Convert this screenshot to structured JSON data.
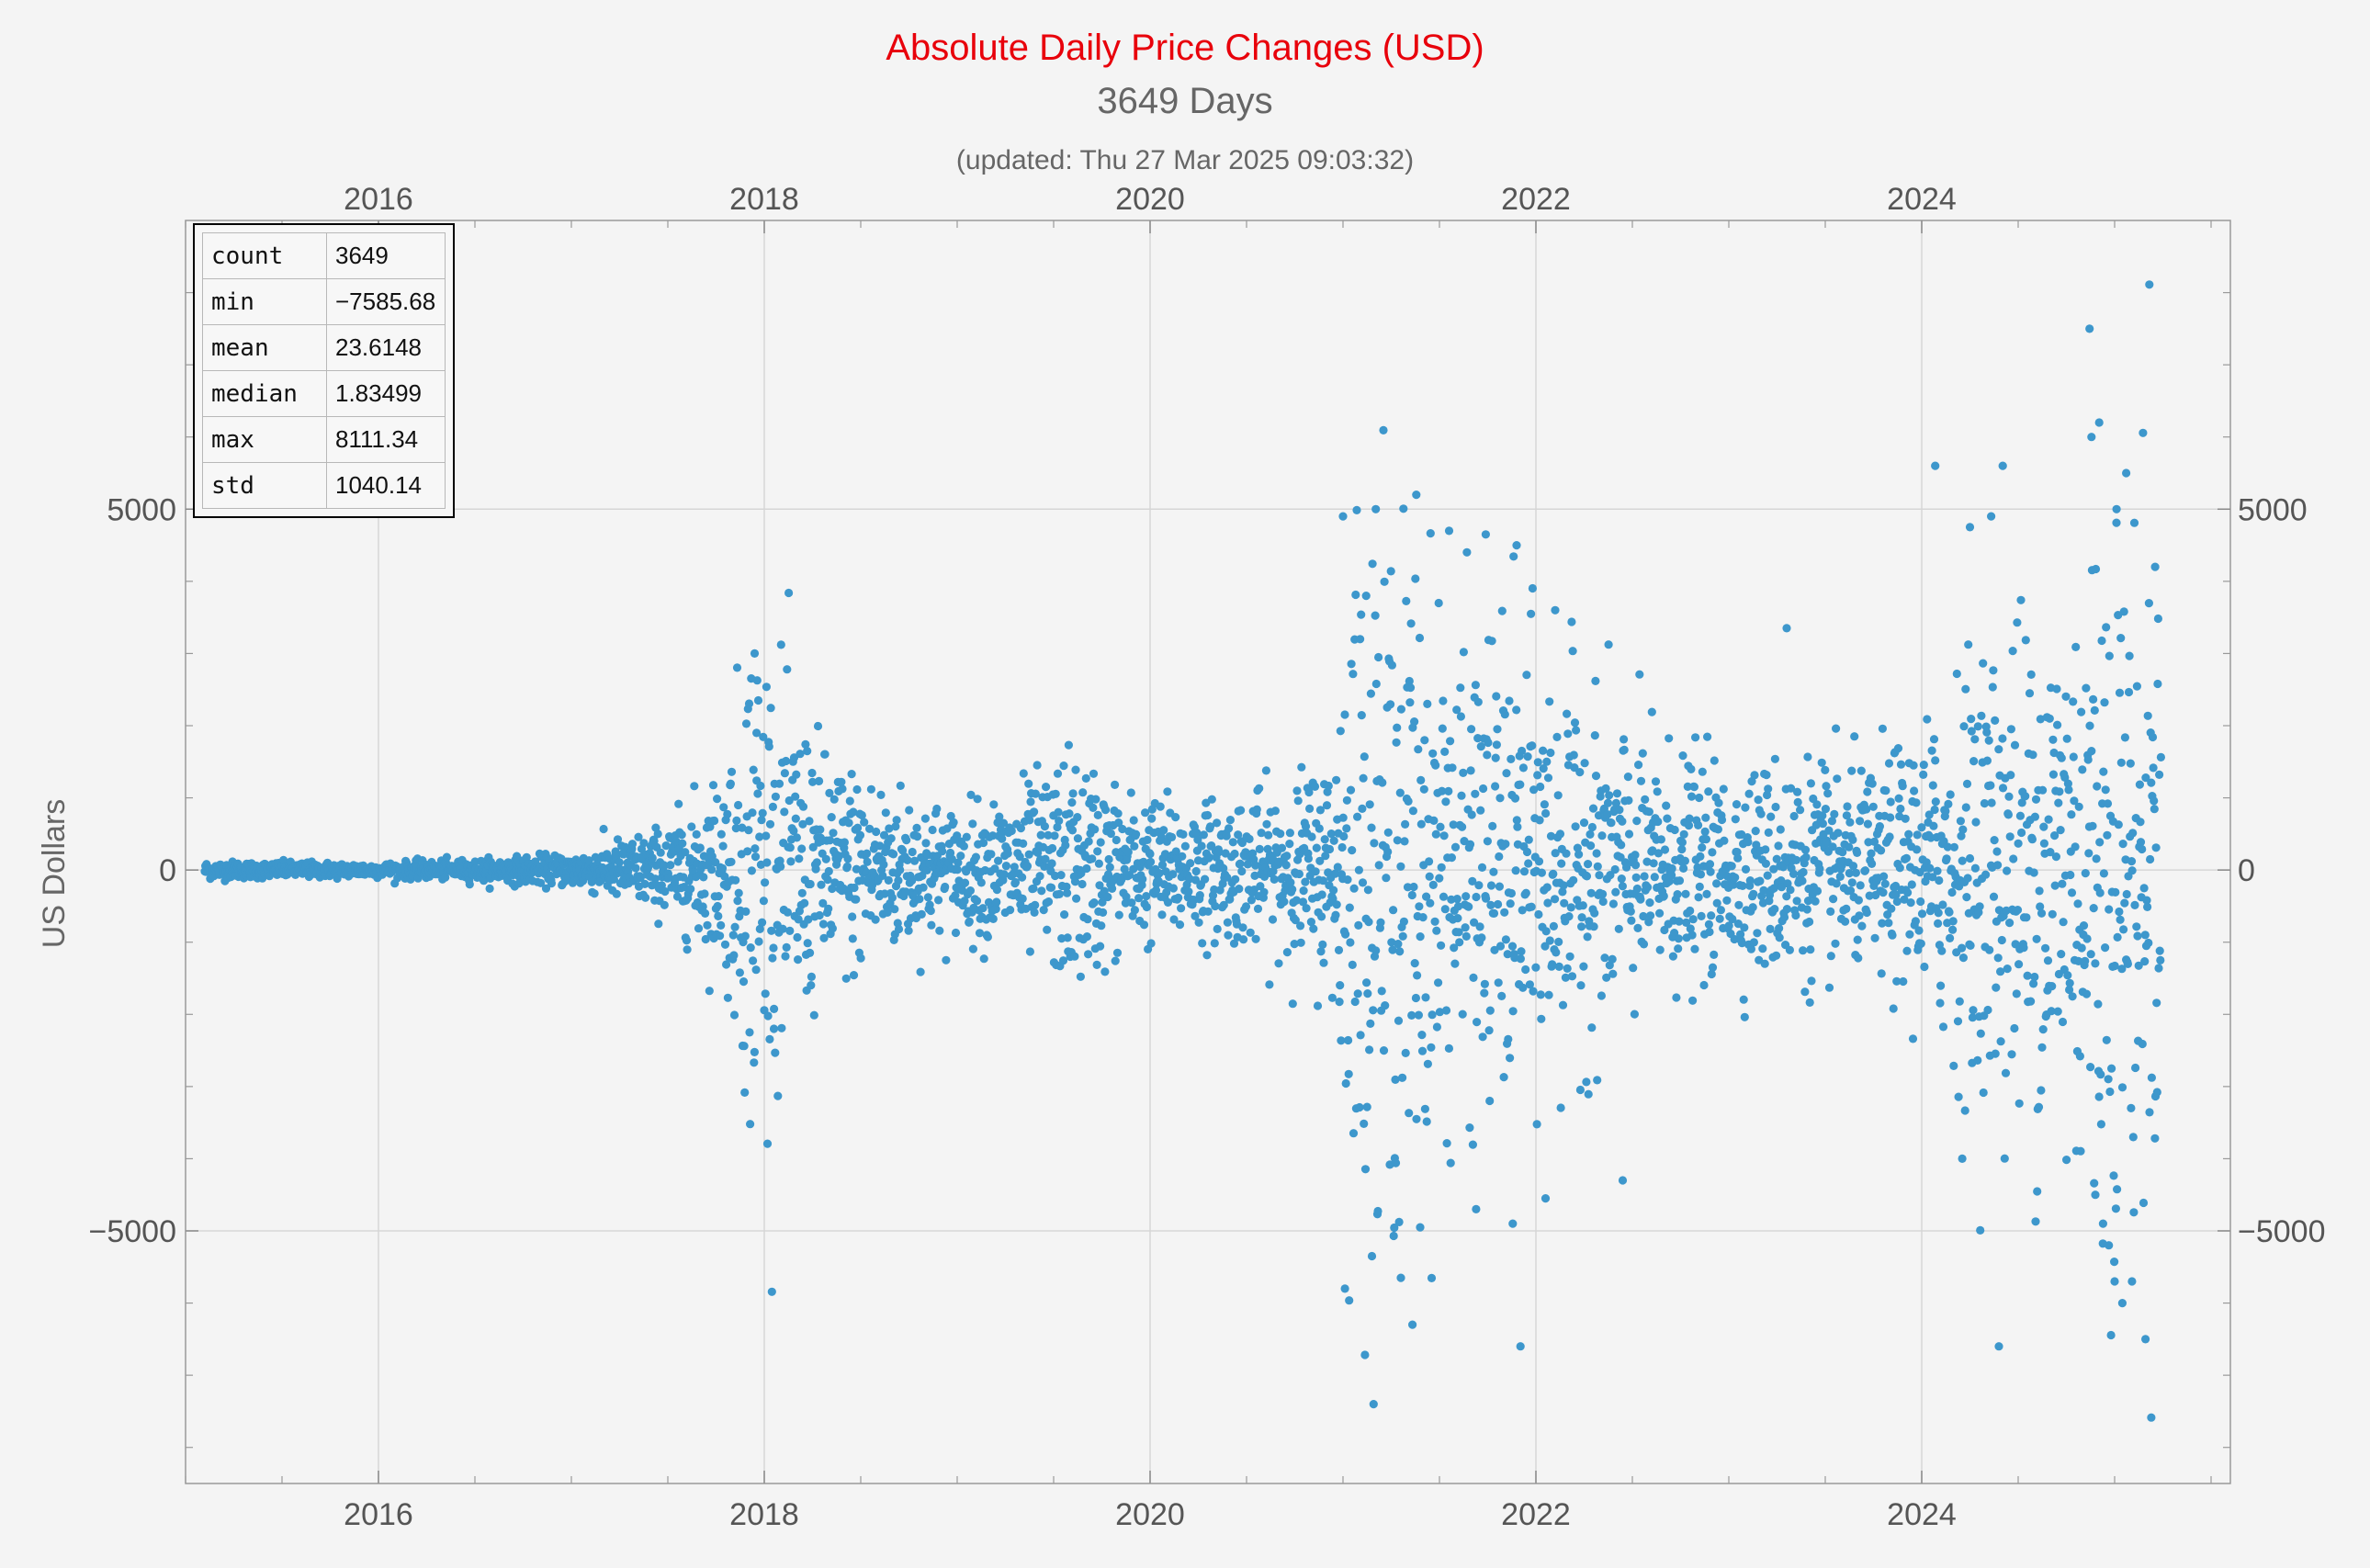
{
  "header": {
    "title": "Absolute Daily Price Changes (USD)",
    "subtitle": "3649 Days",
    "updated": "(updated: Thu 27 Mar 2025 09:03:32)"
  },
  "stats_table": [
    {
      "key": "count",
      "value": "3649"
    },
    {
      "key": "min",
      "value": "−7585.68"
    },
    {
      "key": "mean",
      "value": "23.6148"
    },
    {
      "key": "median",
      "value": "1.83499"
    },
    {
      "key": "max",
      "value": "8111.34"
    },
    {
      "key": "std",
      "value": "1040.14"
    }
  ],
  "chart_data": {
    "type": "scatter",
    "ylabel": "US Dollars",
    "xlabel": "",
    "point_color": "#3d97cc",
    "grid": true,
    "xlim": [
      2015.0,
      2025.6
    ],
    "ylim": [
      -8500,
      9000
    ],
    "x_ticks": [
      2016,
      2018,
      2020,
      2022,
      2024
    ],
    "x_tick_labels": [
      "2016",
      "2018",
      "2020",
      "2022",
      "2024"
    ],
    "y_ticks": [
      -5000,
      0,
      5000
    ],
    "y_tick_labels": [
      "−5000",
      "0",
      "5000"
    ],
    "n_points": 3649,
    "envelope": [
      [
        2015.0,
        60
      ],
      [
        2016.0,
        50
      ],
      [
        2016.5,
        70
      ],
      [
        2017.0,
        110
      ],
      [
        2017.5,
        300
      ],
      [
        2017.8,
        700
      ],
      [
        2017.95,
        1900
      ],
      [
        2018.05,
        1400
      ],
      [
        2018.3,
        800
      ],
      [
        2018.7,
        550
      ],
      [
        2019.0,
        400
      ],
      [
        2019.4,
        600
      ],
      [
        2019.6,
        800
      ],
      [
        2019.9,
        500
      ],
      [
        2020.3,
        450
      ],
      [
        2020.7,
        550
      ],
      [
        2020.95,
        800
      ],
      [
        2021.05,
        2400
      ],
      [
        2021.3,
        2300
      ],
      [
        2021.6,
        1600
      ],
      [
        2021.9,
        1600
      ],
      [
        2022.2,
        1250
      ],
      [
        2022.6,
        850
      ],
      [
        2023.0,
        650
      ],
      [
        2023.3,
        750
      ],
      [
        2023.7,
        650
      ],
      [
        2024.0,
        950
      ],
      [
        2024.3,
        1500
      ],
      [
        2024.7,
        2000
      ],
      [
        2024.95,
        2600
      ],
      [
        2025.25,
        1900
      ]
    ],
    "outliers": [
      {
        "x": 2017.95,
        "y": 3000
      },
      {
        "x": 2018.05,
        "y": -2200
      },
      {
        "x": 2017.96,
        "y": 1900
      },
      {
        "x": 2021.0,
        "y": 4900
      },
      {
        "x": 2021.12,
        "y": 3800
      },
      {
        "x": 2021.17,
        "y": 5000
      },
      {
        "x": 2021.38,
        "y": 5200
      },
      {
        "x": 2021.55,
        "y": 4700
      },
      {
        "x": 2021.74,
        "y": 4650
      },
      {
        "x": 2021.9,
        "y": 4500
      },
      {
        "x": 2022.1,
        "y": 3600
      },
      {
        "x": 2021.01,
        "y": -5800
      },
      {
        "x": 2021.15,
        "y": -5350
      },
      {
        "x": 2021.3,
        "y": -5650
      },
      {
        "x": 2021.36,
        "y": -6300
      },
      {
        "x": 2021.4,
        "y": -4950
      },
      {
        "x": 2021.92,
        "y": -6600
      },
      {
        "x": 2021.88,
        "y": -4900
      },
      {
        "x": 2022.05,
        "y": -4550
      },
      {
        "x": 2022.45,
        "y": -4300
      },
      {
        "x": 2021.69,
        "y": -4700
      },
      {
        "x": 2023.3,
        "y": 3350
      },
      {
        "x": 2024.07,
        "y": 5600
      },
      {
        "x": 2024.42,
        "y": 5600
      },
      {
        "x": 2024.36,
        "y": 4900
      },
      {
        "x": 2024.25,
        "y": 4750
      },
      {
        "x": 2024.87,
        "y": 7500
      },
      {
        "x": 2024.92,
        "y": 6200
      },
      {
        "x": 2024.88,
        "y": 6000
      },
      {
        "x": 2025.01,
        "y": 5000
      },
      {
        "x": 2025.06,
        "y": 5500
      },
      {
        "x": 2025.18,
        "y": 8111.34
      },
      {
        "x": 2025.21,
        "y": 4200
      },
      {
        "x": 2024.4,
        "y": -6600
      },
      {
        "x": 2024.9,
        "y": -4500
      },
      {
        "x": 2024.94,
        "y": -4900
      },
      {
        "x": 2024.97,
        "y": -5200
      },
      {
        "x": 2025.0,
        "y": -5700
      },
      {
        "x": 2025.04,
        "y": -6000
      },
      {
        "x": 2025.09,
        "y": -5700
      },
      {
        "x": 2025.16,
        "y": -6500
      },
      {
        "x": 2025.19,
        "y": -7585.68
      },
      {
        "x": 2024.21,
        "y": -4000
      }
    ]
  }
}
